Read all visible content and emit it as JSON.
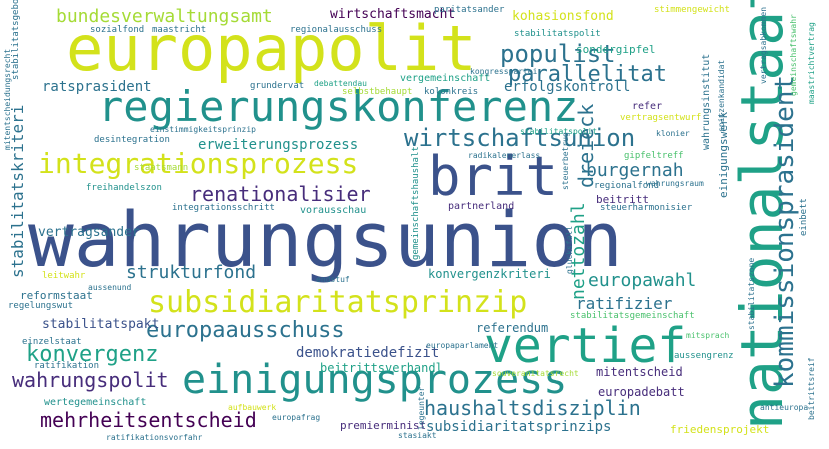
{
  "palette": {
    "yellow": "#d3e21b",
    "lime": "#a5db36",
    "green": "#4ac16d",
    "teal": "#1fa187",
    "bluegreen": "#21918c",
    "blue": "#2c728e",
    "steel": "#3b528b",
    "indigo": "#472d7b",
    "purple": "#440154",
    "light": "#7ad151"
  },
  "words": [
    "wahrungsunion",
    "europapolit",
    "regierungskonferenz",
    "nationalstaat",
    "brit",
    "vertief",
    "einigungsprozess",
    "subsidiaritatsprinzip",
    "integrationsprozess",
    "wirtschaftsunion",
    "kommissionsprasident",
    "bundesverwaltungsamt",
    "populist",
    "parallelitat",
    "renationalisier",
    "mehrheitsentscheid",
    "haushaltsdisziplin",
    "europaausschuss",
    "konvergenz",
    "wahrungspolit",
    "strukturfond",
    "burgernah",
    "stabilitatskriteri",
    "dreieck",
    "nettozahl",
    "europawahl",
    "ratifizier",
    "demokratiedefizit",
    "erfolgskontroll",
    "ratsprasident",
    "erweiterungsprozess",
    "wirtschaftsmacht",
    "kohasionsfond",
    "sondergipfel",
    "stabilitatspolit",
    "vergemeinschaft",
    "mitentscheid",
    "europadebatt",
    "subsidiaritatsprinzips",
    "konvergenzkriteri",
    "referendum",
    "beitrittsverhandl",
    "premierminist",
    "friedensprojekt",
    "vertragsander",
    "reformstaat",
    "stabilitatspakt",
    "beitritt",
    "partnerland",
    "vorausschau",
    "wertegemeinschaft",
    "regionalfond",
    "gipfeltreff",
    "freihandelszon",
    "desintegration",
    "refer",
    "vertragsentwurf",
    "einigungswerk",
    "wahrungsinstitut",
    "stabilitatsgemeinschaft",
    "einzelstaat",
    "regelungswut",
    "leitwahr",
    "ratifikation",
    "sozialfond",
    "maastricht",
    "regionalausschuss",
    "paritatsander",
    "stimmengewicht",
    "grundervat",
    "debattendau",
    "kongresspartei",
    "selbstbehaupt",
    "kolonkreis",
    "einstimmigkeitsprinzip",
    "stabilitatspakt",
    "klonier",
    "radikalenerlass",
    "staatsmann",
    "wahrungsraum",
    "integrationsschritt",
    "steuerharmonisier",
    "endstuf",
    "aussenund",
    "gemeinschaftshaushalt",
    "europaparlament",
    "souveranitatsrecht",
    "aufbauwerk",
    "europafrag",
    "stasiakt",
    "ratifikationsvorfahr",
    "aussengrenz",
    "mitsprach",
    "antieuropa",
    "einbett",
    "glucksfall",
    "stabilitatsgebot",
    "mitentscheidungsrecht",
    "spitzenkandidat",
    "gemeinschaftswahr",
    "maastrichtvertrag",
    "vertragsabkommen",
    "stabilitatszone",
    "steuerbetrug",
    "legeunter",
    "beitrittsreif"
  ]
}
